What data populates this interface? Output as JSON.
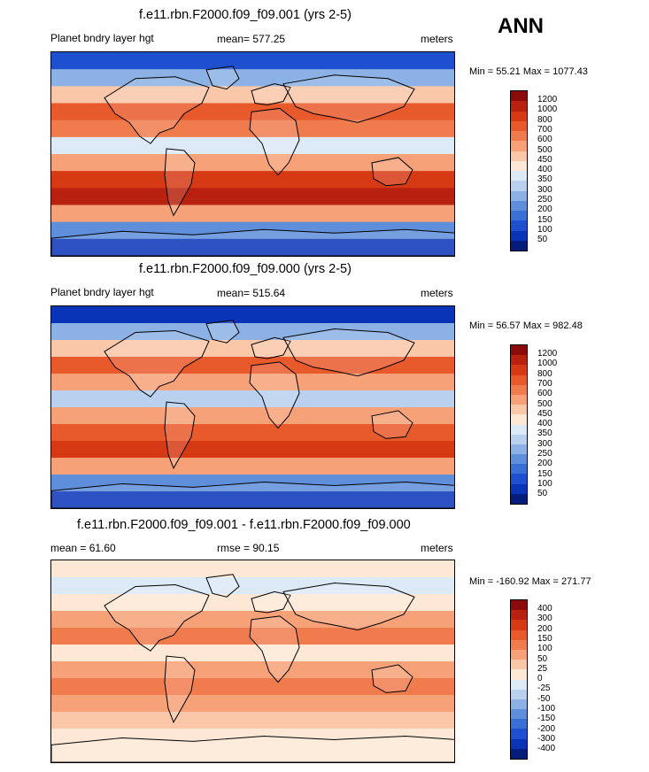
{
  "page_label": "ANN",
  "chart_data": [
    {
      "type": "heatmap",
      "title": "f.e11.rbn.F2000.f09_f09.001 (yrs 2-5)",
      "left_label": "Planet bndry layer hgt",
      "center_label": "mean= 577.25",
      "right_label": "meters",
      "minmax": "Min =  55.21 Max = 1077.43",
      "mean": 577.25,
      "min": 55.21,
      "max": 1077.43,
      "colorbar_levels": [
        "1200",
        "1000",
        "800",
        "700",
        "600",
        "500",
        "450",
        "400",
        "350",
        "300",
        "250",
        "200",
        "150",
        "100",
        "50"
      ],
      "colorbar_colors": [
        "#8b0a0a",
        "#b8210f",
        "#d63a14",
        "#e85a2c",
        "#f07c4e",
        "#f6a178",
        "#fac7a8",
        "#fde8d6",
        "#dce9f7",
        "#b9d1ef",
        "#8cb2e5",
        "#5f8fdb",
        "#3a6fd6",
        "#1d4fcf",
        "#0a34b8",
        "#041d7a"
      ],
      "zones": [
        0.12,
        0.35,
        0.62,
        0.8,
        0.72,
        0.45,
        0.7,
        0.88,
        0.92,
        0.7,
        0.3,
        0.1
      ]
    },
    {
      "type": "heatmap",
      "title": "f.e11.rbn.F2000.f09_f09.000 (yrs 2-5)",
      "left_label": "Planet bndry layer hgt",
      "center_label": "mean= 515.64",
      "right_label": "meters",
      "minmax": "Min =  56.57 Max = 982.48",
      "mean": 515.64,
      "min": 56.57,
      "max": 982.48,
      "colorbar_levels": [
        "1200",
        "1000",
        "800",
        "700",
        "600",
        "500",
        "450",
        "400",
        "350",
        "300",
        "250",
        "200",
        "150",
        "100",
        "50"
      ],
      "colorbar_colors": [
        "#8b0a0a",
        "#b8210f",
        "#d63a14",
        "#e85a2c",
        "#f07c4e",
        "#f6a178",
        "#fac7a8",
        "#fde8d6",
        "#dce9f7",
        "#b9d1ef",
        "#8cb2e5",
        "#5f8fdb",
        "#3a6fd6",
        "#1d4fcf",
        "#0a34b8",
        "#041d7a"
      ],
      "zones": [
        0.1,
        0.32,
        0.6,
        0.78,
        0.66,
        0.42,
        0.64,
        0.82,
        0.86,
        0.64,
        0.26,
        0.09
      ]
    },
    {
      "type": "heatmap",
      "title": "f.e11.rbn.F2000.f09_f09.001 - f.e11.rbn.F2000.f09_f09.000",
      "left_label": "mean =  61.60",
      "center_label": "rmse =  90.15",
      "right_label": "meters",
      "minmax": "Min = -160.92 Max = 271.77",
      "mean": 61.6,
      "rmse": 90.15,
      "min": -160.92,
      "max": 271.77,
      "colorbar_levels": [
        "400",
        "300",
        "200",
        "150",
        "100",
        "50",
        "25",
        "0",
        "-25",
        "-50",
        "-100",
        "-150",
        "-200",
        "-300",
        "-400"
      ],
      "colorbar_colors": [
        "#8b0a0a",
        "#b8210f",
        "#d63a14",
        "#e85a2c",
        "#f07c4e",
        "#f6a178",
        "#fac7a8",
        "#fde8d6",
        "#dce9f7",
        "#b9d1ef",
        "#8cb2e5",
        "#5f8fdb",
        "#3a6fd6",
        "#1d4fcf",
        "#0a34b8",
        "#041d7a"
      ],
      "zones": [
        0.55,
        0.45,
        0.55,
        0.7,
        0.72,
        0.55,
        0.7,
        0.74,
        0.7,
        0.6,
        0.55,
        0.55
      ]
    }
  ]
}
